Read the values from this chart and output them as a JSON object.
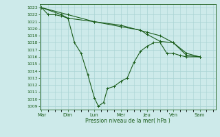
{
  "xlabel": "Pression niveau de la mer( hPa )",
  "background_color": "#cdeaea",
  "grid_color": "#aad4d4",
  "line_color": "#1a5c1a",
  "ylim": [
    1008.5,
    1023.5
  ],
  "yticks": [
    1009,
    1010,
    1011,
    1012,
    1013,
    1014,
    1015,
    1016,
    1017,
    1018,
    1019,
    1020,
    1021,
    1022,
    1023
  ],
  "day_labels": [
    "Mar",
    "Dim",
    "Lun",
    "Mer",
    "Jeu",
    "Ven",
    "Sam"
  ],
  "day_positions": [
    0,
    2,
    4,
    6,
    8,
    10,
    12
  ],
  "xlim": [
    -0.15,
    13.2
  ],
  "series1": [
    [
      0.0,
      1023.0
    ],
    [
      0.5,
      1022.0
    ],
    [
      1.0,
      1022.0
    ],
    [
      1.5,
      1021.8
    ],
    [
      2.0,
      1021.5
    ],
    [
      2.5,
      1018.0
    ],
    [
      3.0,
      1016.5
    ],
    [
      3.5,
      1013.5
    ],
    [
      4.0,
      1010.2
    ],
    [
      4.3,
      1009.0
    ],
    [
      4.7,
      1009.5
    ],
    [
      5.0,
      1011.5
    ],
    [
      5.5,
      1011.8
    ],
    [
      6.0,
      1012.5
    ],
    [
      6.5,
      1013.0
    ],
    [
      7.0,
      1015.2
    ],
    [
      7.5,
      1016.8
    ],
    [
      8.0,
      1017.5
    ],
    [
      8.5,
      1018.0
    ],
    [
      9.0,
      1018.0
    ],
    [
      9.5,
      1016.5
    ],
    [
      10.0,
      1016.5
    ],
    [
      10.5,
      1016.2
    ],
    [
      11.0,
      1016.0
    ],
    [
      12.0,
      1016.0
    ]
  ],
  "series2": [
    [
      0.0,
      1023.0
    ],
    [
      1.5,
      1022.0
    ],
    [
      2.0,
      1021.5
    ],
    [
      4.0,
      1021.0
    ],
    [
      6.0,
      1020.3
    ],
    [
      7.5,
      1019.8
    ],
    [
      8.0,
      1019.2
    ],
    [
      9.0,
      1018.2
    ],
    [
      10.0,
      1018.0
    ],
    [
      11.0,
      1016.5
    ],
    [
      12.0,
      1016.0
    ]
  ],
  "series3": [
    [
      0.0,
      1023.0
    ],
    [
      2.0,
      1022.0
    ],
    [
      4.0,
      1021.0
    ],
    [
      6.0,
      1020.5
    ],
    [
      8.0,
      1019.5
    ],
    [
      9.0,
      1019.0
    ],
    [
      10.0,
      1018.0
    ],
    [
      11.0,
      1016.2
    ],
    [
      12.0,
      1016.0
    ]
  ]
}
